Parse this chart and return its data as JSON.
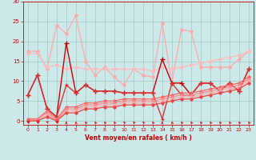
{
  "background_color": "#cce8e8",
  "grid_color": "#99cccc",
  "xlabel": "Vent moyen/en rafales ( km/h )",
  "xlabel_color": "#cc0000",
  "tick_color": "#cc0000",
  "ylim": [
    -1,
    30
  ],
  "xlim": [
    -0.5,
    23.5
  ],
  "yticks": [
    0,
    5,
    10,
    15,
    20,
    25,
    30
  ],
  "xticks": [
    0,
    1,
    2,
    3,
    4,
    5,
    6,
    7,
    8,
    9,
    10,
    11,
    12,
    13,
    14,
    15,
    16,
    17,
    18,
    19,
    20,
    21,
    22,
    23
  ],
  "series": [
    {
      "x": [
        0,
        1,
        2,
        3,
        4,
        5,
        6,
        7,
        8,
        9,
        10,
        11,
        12,
        13,
        14,
        15,
        16,
        17,
        18,
        19,
        20,
        21,
        22,
        23
      ],
      "y": [
        17.5,
        17.5,
        13,
        24,
        22,
        26.5,
        15,
        11.5,
        13.5,
        11,
        9,
        13,
        11.5,
        11,
        24.5,
        9.5,
        23,
        22.5,
        13.5,
        13.5,
        13.5,
        13.5,
        15.5,
        17.5
      ],
      "color": "#ffaaaa",
      "lw": 0.9,
      "marker": "D",
      "ms": 2.0
    },
    {
      "x": [
        0,
        1,
        2,
        3,
        4,
        5,
        6,
        7,
        8,
        9,
        10,
        11,
        12,
        13,
        14,
        15,
        16,
        17,
        18,
        19,
        20,
        21,
        22,
        23
      ],
      "y": [
        17.0,
        17.0,
        13.5,
        14.0,
        13.0,
        13.5,
        13.0,
        13.0,
        13.0,
        13.0,
        13.0,
        13.0,
        13.0,
        12.5,
        13.5,
        13.0,
        13.5,
        14.0,
        14.5,
        15.0,
        15.5,
        16.0,
        16.5,
        17.5
      ],
      "color": "#ffbbbb",
      "lw": 0.9,
      "marker": "D",
      "ms": 2.0
    },
    {
      "x": [
        0,
        1,
        2,
        3,
        4,
        5,
        6,
        7,
        8,
        9,
        10,
        11,
        12,
        13,
        14,
        15,
        16,
        17,
        18,
        19,
        20,
        21,
        22,
        23
      ],
      "y": [
        6.5,
        11.5,
        3.0,
        1.0,
        19.5,
        7.0,
        9.0,
        7.5,
        7.5,
        7.5,
        7.0,
        7.0,
        7.0,
        7.0,
        15.5,
        9.5,
        9.5,
        6.5,
        9.5,
        9.5,
        7.5,
        9.5,
        7.5,
        13.0
      ],
      "color": "#cc0000",
      "lw": 1.0,
      "marker": "+",
      "ms": 4.0
    },
    {
      "x": [
        0,
        1,
        2,
        3,
        4,
        5,
        6,
        7,
        8,
        9,
        10,
        11,
        12,
        13,
        14,
        15,
        16,
        17,
        18,
        19,
        20,
        21,
        22,
        23
      ],
      "y": [
        6.5,
        11.5,
        3.0,
        1.0,
        9.0,
        7.0,
        9.0,
        7.5,
        7.5,
        7.5,
        7.0,
        7.0,
        7.0,
        7.0,
        0.5,
        9.5,
        6.5,
        6.5,
        9.5,
        9.5,
        7.5,
        9.5,
        7.5,
        13.0
      ],
      "color": "#dd3333",
      "lw": 1.0,
      "marker": "+",
      "ms": 3.5
    },
    {
      "x": [
        0,
        1,
        2,
        3,
        4,
        5,
        6,
        7,
        8,
        9,
        10,
        11,
        12,
        13,
        14,
        15,
        16,
        17,
        18,
        19,
        20,
        21,
        22,
        23
      ],
      "y": [
        0.5,
        0.5,
        2.5,
        0.5,
        3.5,
        3.5,
        4.5,
        4.5,
        5.0,
        5.0,
        5.5,
        5.5,
        5.5,
        5.5,
        6.0,
        6.5,
        7.0,
        7.0,
        7.5,
        8.0,
        8.5,
        9.0,
        9.5,
        11.0
      ],
      "color": "#ff6666",
      "lw": 0.9,
      "marker": "D",
      "ms": 1.8
    },
    {
      "x": [
        0,
        1,
        2,
        3,
        4,
        5,
        6,
        7,
        8,
        9,
        10,
        11,
        12,
        13,
        14,
        15,
        16,
        17,
        18,
        19,
        20,
        21,
        22,
        23
      ],
      "y": [
        0.0,
        0.5,
        2.0,
        0.0,
        3.0,
        3.0,
        4.0,
        4.0,
        4.5,
        4.5,
        5.0,
        5.0,
        5.0,
        5.0,
        5.5,
        6.0,
        6.5,
        6.5,
        7.0,
        7.5,
        8.0,
        8.5,
        9.0,
        10.5
      ],
      "color": "#ff8888",
      "lw": 0.9,
      "marker": "D",
      "ms": 1.8
    },
    {
      "x": [
        0,
        1,
        2,
        3,
        4,
        5,
        6,
        7,
        8,
        9,
        10,
        11,
        12,
        13,
        14,
        15,
        16,
        17,
        18,
        19,
        20,
        21,
        22,
        23
      ],
      "y": [
        0.0,
        0.0,
        1.5,
        0.0,
        2.5,
        2.5,
        3.5,
        3.5,
        4.0,
        4.0,
        4.5,
        4.5,
        4.5,
        4.5,
        5.0,
        5.5,
        6.0,
        6.0,
        6.5,
        7.0,
        7.5,
        8.0,
        8.5,
        10.0
      ],
      "color": "#ffaaaa",
      "lw": 0.9,
      "marker": "D",
      "ms": 1.8
    },
    {
      "x": [
        0,
        1,
        2,
        3,
        4,
        5,
        6,
        7,
        8,
        9,
        10,
        11,
        12,
        13,
        14,
        15,
        16,
        17,
        18,
        19,
        20,
        21,
        22,
        23
      ],
      "y": [
        0.0,
        0.0,
        1.0,
        0.0,
        2.0,
        2.0,
        3.0,
        3.0,
        3.5,
        3.5,
        4.0,
        4.0,
        4.0,
        4.0,
        4.5,
        5.0,
        5.5,
        5.5,
        6.0,
        6.5,
        7.0,
        7.5,
        8.0,
        9.5
      ],
      "color": "#ee4444",
      "lw": 0.9,
      "marker": "D",
      "ms": 1.8
    }
  ],
  "arrow_color": "#cc0000",
  "arrow_angles_deg": [
    225,
    225,
    240,
    230,
    180,
    185,
    195,
    195,
    195,
    195,
    200,
    200,
    200,
    195,
    180,
    190,
    195,
    195,
    195,
    195,
    195,
    195,
    195,
    195
  ]
}
